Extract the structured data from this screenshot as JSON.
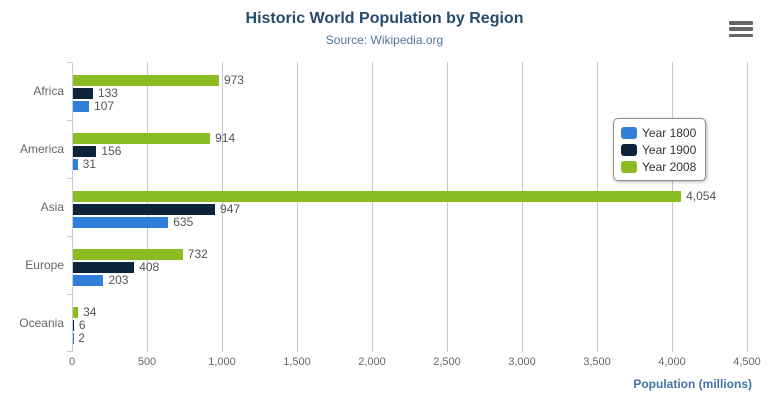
{
  "chart_data": {
    "type": "bar",
    "title": "Historic World Population by Region",
    "subtitle": "Source: Wikipedia.org",
    "categories": [
      "Africa",
      "America",
      "Asia",
      "Europe",
      "Oceania"
    ],
    "series": [
      {
        "name": "Year 1800",
        "color": "#2f7ed8",
        "values": [
          107,
          31,
          635,
          203,
          2
        ]
      },
      {
        "name": "Year 1900",
        "color": "#0d233a",
        "values": [
          133,
          156,
          947,
          408,
          6
        ]
      },
      {
        "name": "Year 2008",
        "color": "#8bbc21",
        "values": [
          973,
          914,
          4054,
          732,
          34
        ]
      }
    ],
    "bar_display_order_top_to_bottom": [
      "Year 2008",
      "Year 1900",
      "Year 1800"
    ],
    "xlabel": "Population (millions)",
    "ylabel": "",
    "xlim": [
      0,
      4500
    ],
    "x_ticks": [
      0,
      500,
      1000,
      1500,
      2000,
      2500,
      3000,
      3500,
      4000,
      4500
    ],
    "grid": true,
    "legend_position": "right-middle",
    "data_labels": true
  },
  "icons": {
    "export_menu": "hamburger-icon"
  },
  "colors": {
    "title": "#274b6d",
    "subtitle": "#4d759e",
    "axis_title": "#4572a7",
    "axis_line": "#c0d0e0",
    "gridline": "#c8c8c8",
    "labels": "#555555",
    "legend_border": "#909090",
    "export_icon": "#666666"
  }
}
